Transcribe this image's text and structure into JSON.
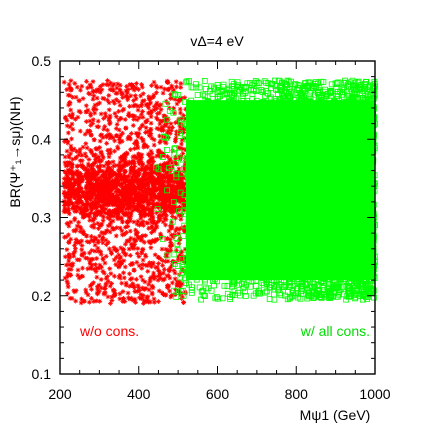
{
  "chart_data": {
    "type": "scatter",
    "title": "vΔ=4 eV",
    "xlabel": "Mψ1 (GeV)",
    "ylabel": "BR(Ψ⁺₁→sμ)(NH)",
    "xlim": [
      200,
      1000
    ],
    "ylim": [
      0.1,
      0.5
    ],
    "x_ticks": [
      "200",
      "400",
      "600",
      "800",
      "1000"
    ],
    "y_ticks": [
      "0.1",
      "0.2",
      "0.3",
      "0.4",
      "0.5"
    ],
    "x_tick_values": [
      200,
      400,
      600,
      800,
      1000
    ],
    "y_tick_values": [
      0.1,
      0.2,
      0.3,
      0.4,
      0.5
    ],
    "grid": false,
    "series": [
      {
        "name": "w/o cons.",
        "color": "#ff0000",
        "marker": "star",
        "x_range": [
          210,
          520
        ],
        "y_range": [
          0.19,
          0.475
        ],
        "count": 2600
      },
      {
        "name": "w/ all cons.",
        "color": "#00ff00",
        "marker": "open-square",
        "x_range": [
          440,
          1000
        ],
        "y_range": [
          0.195,
          0.475
        ],
        "count": 3200
      }
    ],
    "annotations": [
      {
        "text": "w/o cons.",
        "color": "#ff0000"
      },
      {
        "text": "w/ all cons.",
        "color": "#00dd00"
      }
    ]
  }
}
